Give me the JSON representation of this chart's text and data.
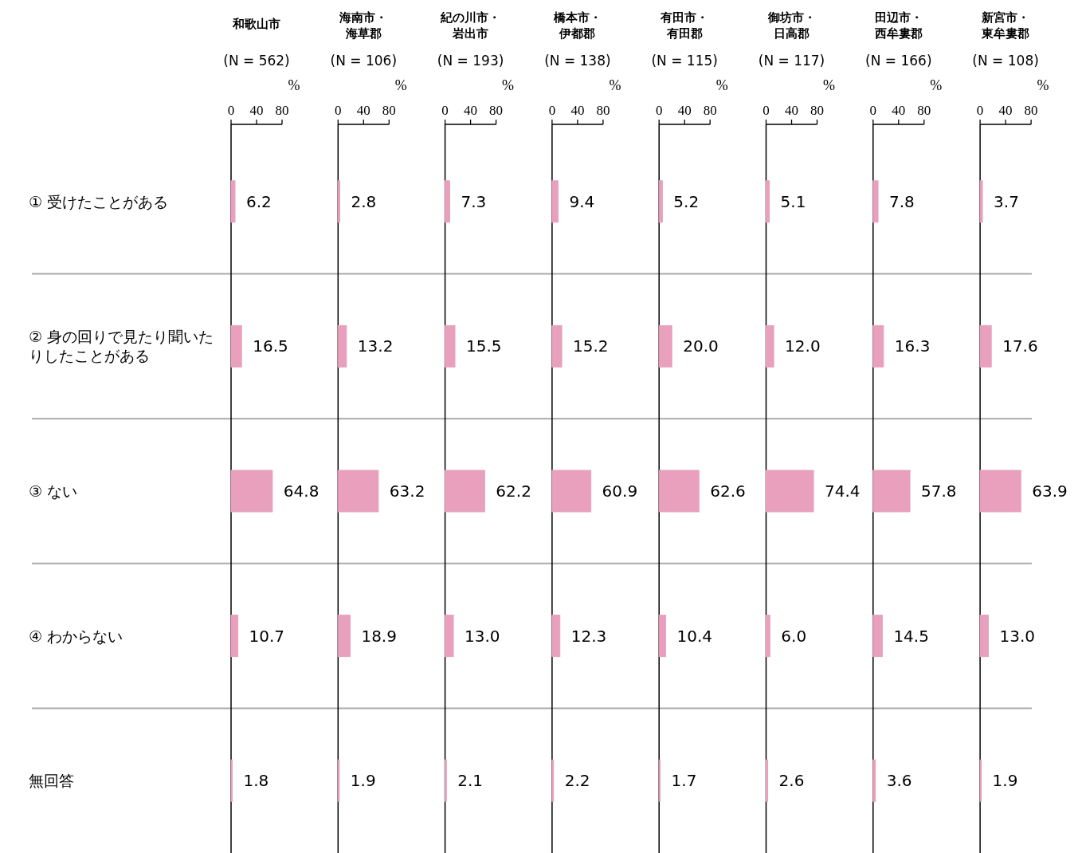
{
  "chart_data": [
    {
      "type": "bar",
      "orientation": "horizontal",
      "title": "和歌山市",
      "subtitle": "(N = 562)",
      "xlabel": "%",
      "categories": [
        "① 受けたことがある",
        "② 身の回りで見たり聞いたりしたことがある",
        "③ ない",
        "④ わからない",
        "無回答"
      ],
      "values": [
        6.2,
        16.5,
        64.8,
        10.7,
        1.8
      ],
      "value_labels": [
        "6.2",
        "16.5",
        "64.8",
        "10.7",
        "1.8"
      ],
      "color": "#e8a0bd",
      "xlim": [
        0,
        80
      ],
      "xticks": [
        0,
        40,
        80
      ]
    },
    {
      "type": "bar",
      "orientation": "horizontal",
      "title": "海南市・海草郡",
      "subtitle": "(N = 106)",
      "xlabel": "%",
      "categories": [
        "① 受けたことがある",
        "② 身の回りで見たり聞いたりしたことがある",
        "③ ない",
        "④ わからない",
        "無回答"
      ],
      "values": [
        2.8,
        13.2,
        63.2,
        18.9,
        1.9
      ],
      "value_labels": [
        "2.8",
        "13.2",
        "63.2",
        "18.9",
        "1.9"
      ],
      "color": "#e8a0bd",
      "xlim": [
        0,
        80
      ],
      "xticks": [
        0,
        40,
        80
      ],
      "tick_labels": "x"
    },
    {
      "type": "bar",
      "orientation": "horizontal",
      "title": "紀の川市・岩出市",
      "subtitle": "(N = 193)",
      "xlabel": "%",
      "categories": [
        "① 受けたことがある",
        "② 身の回りで見たり聞いたりしたことがある",
        "③ ない",
        "④ わからない",
        "無回答"
      ],
      "values": [
        7.3,
        15.5,
        62.2,
        13.0,
        2.1
      ],
      "value_labels": [
        "7.3",
        "15.5",
        "62.2",
        "13.0",
        "2.1"
      ],
      "color": "#e8a0bd",
      "xlim": [
        0,
        80
      ],
      "xticks": [
        0,
        40,
        80
      ],
      "tick_labels": "x"
    },
    {
      "type": "bar",
      "orientation": "horizontal",
      "title": "橋本市・伊都郡",
      "subtitle": "(N = 138)",
      "xlabel": "%",
      "categories": [
        "① 受けたことがある",
        "② 身の回りで見たり聞いたりしたことがある",
        "③ ない",
        "④ わからない",
        "無回答"
      ],
      "values": [
        9.4,
        15.2,
        60.9,
        12.3,
        2.2
      ],
      "value_labels": [
        "9.4",
        "15.2",
        "60.9",
        "12.3",
        "2.2"
      ],
      "color": "#e8a0bd",
      "xlim": [
        0,
        80
      ],
      "xticks": [
        0,
        40,
        80
      ],
      "tick_labels": "x"
    },
    {
      "type": "bar",
      "orientation": "horizontal",
      "title": "有田市・有田郡",
      "subtitle": "(N = 115)",
      "xlabel": "%",
      "categories": [
        "① 受けたことがある",
        "② 身の回りで見たり聞いたりしたことがある",
        "③ ない",
        "④ わからない",
        "無回答"
      ],
      "values": [
        5.2,
        20.0,
        62.6,
        10.4,
        1.7
      ],
      "value_labels": [
        "5.2",
        "20.0",
        "62.6",
        "10.4",
        "1.7"
      ],
      "color": "#e8a0bd",
      "xlim": [
        0,
        80
      ],
      "xticks": [
        0,
        40,
        80
      ],
      "tick_labels": "x"
    },
    {
      "type": "bar",
      "orientation": "horizontal",
      "title": "御坊市・日高郡",
      "subtitle": "(N = 117)",
      "xlabel": "%",
      "categories": [
        "① 受けたことがある",
        "② 身の回りで見たり聞いたりしたことがある",
        "③ ない",
        "④ わからない",
        "無回答"
      ],
      "values": [
        5.1,
        12.0,
        74.4,
        6.0,
        2.6
      ],
      "value_labels": [
        "5.1",
        "12.0",
        "74.4",
        "6.0",
        "2.6"
      ],
      "color": "#e8a0bd",
      "xlim": [
        0,
        80
      ],
      "xticks": [
        0,
        40,
        80
      ],
      "tick_labels": "x"
    },
    {
      "type": "bar",
      "orientation": "horizontal",
      "title": "田辺市・西牟婁郡",
      "subtitle": "(N = 166)",
      "xlabel": "%",
      "categories": [
        "① 受けたことがある",
        "② 身の回りで見たり聞いたりしたことがある",
        "③ ない",
        "④ わからない",
        "無回答"
      ],
      "values": [
        7.8,
        16.3,
        57.8,
        14.5,
        3.6
      ],
      "value_labels": [
        "7.8",
        "16.3",
        "57.8",
        "14.5",
        "3.6"
      ],
      "color": "#e8a0bd",
      "xlim": [
        0,
        80
      ],
      "xticks": [
        0,
        40,
        80
      ],
      "tick_labels": "x"
    },
    {
      "type": "bar",
      "orientation": "horizontal",
      "title": "新宮市・東牟婁郡",
      "subtitle": "(N = 108)",
      "xlabel": "%",
      "categories": [
        "① 受けたことがある",
        "② 身の回りで見たり聞いたりしたことがある",
        "③ ない",
        "④ わからない",
        "無回答"
      ],
      "values": [
        3.7,
        17.6,
        63.9,
        13.0,
        1.9
      ],
      "value_labels": [
        "3.7",
        "17.6",
        "63.9",
        "13.0",
        "1.9"
      ],
      "color": "#e8a0bd",
      "xlim": [
        0,
        80
      ],
      "xticks": [
        0,
        40,
        80
      ],
      "tick_labels": "x"
    }
  ]
}
